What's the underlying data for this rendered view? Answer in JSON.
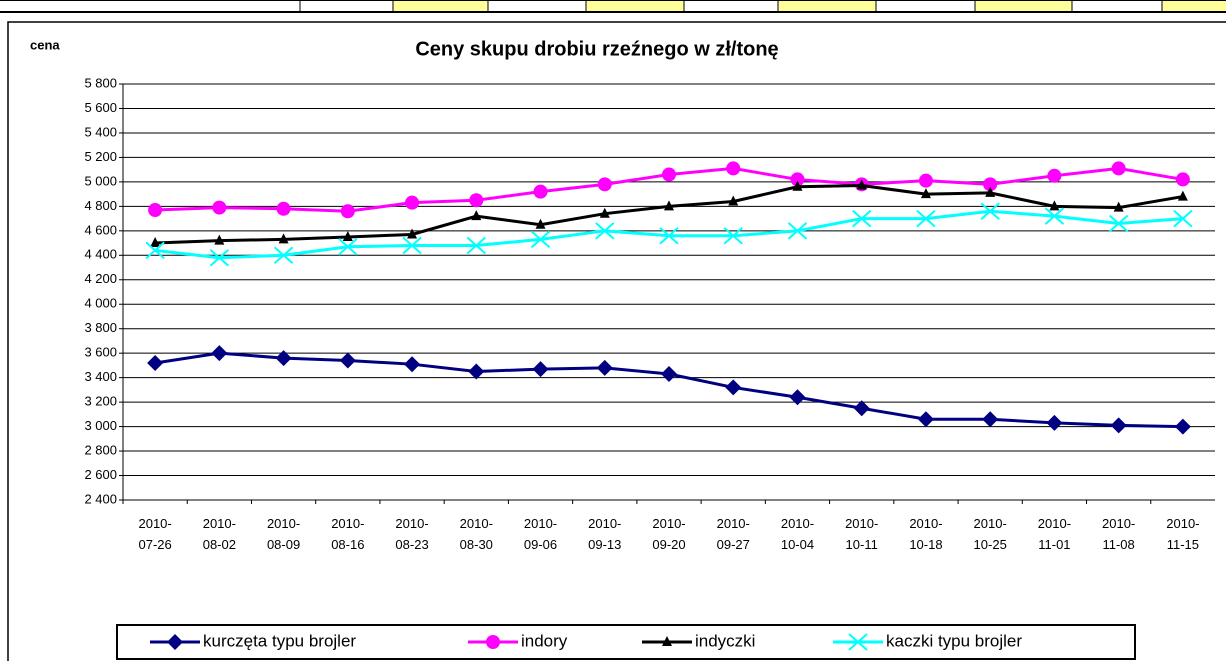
{
  "chart_data": {
    "type": "line",
    "title": "Ceny skupu drobiu rzeźnego w zł/tonę",
    "y_label": "cena",
    "categories": [
      "2010-07-26",
      "2010-08-02",
      "2010-08-09",
      "2010-08-16",
      "2010-08-23",
      "2010-08-30",
      "2010-09-06",
      "2010-09-13",
      "2010-09-20",
      "2010-09-27",
      "2010-10-04",
      "2010-10-11",
      "2010-10-18",
      "2010-10-25",
      "2010-11-01",
      "2010-11-08",
      "2010-11-15"
    ],
    "series": [
      {
        "name": "kurczęta typu brojler",
        "color": "#000080",
        "marker": "diamond",
        "values": [
          3520,
          3600,
          3560,
          3540,
          3510,
          3450,
          3470,
          3480,
          3430,
          3320,
          3240,
          3150,
          3060,
          3060,
          3030,
          3010,
          3000
        ]
      },
      {
        "name": "indory",
        "color": "#ff00ff",
        "marker": "circle",
        "values": [
          4770,
          4790,
          4780,
          4760,
          4830,
          4850,
          4920,
          4980,
          5060,
          5110,
          5020,
          4980,
          5010,
          4980,
          5050,
          5110,
          5020
        ]
      },
      {
        "name": "indyczki",
        "color": "#000000",
        "marker": "triangle",
        "values": [
          4500,
          4520,
          4530,
          4550,
          4570,
          4720,
          4650,
          4740,
          4800,
          4840,
          4960,
          4970,
          4900,
          4910,
          4800,
          4790,
          4880
        ]
      },
      {
        "name": "kaczki typu brojler",
        "color": "#00ffff",
        "marker": "x",
        "values": [
          4440,
          4380,
          4400,
          4470,
          4480,
          4480,
          4530,
          4600,
          4560,
          4560,
          4600,
          4700,
          4700,
          4760,
          4720,
          4660,
          4700
        ]
      }
    ],
    "ylim": [
      2400,
      5800
    ],
    "yticks": [
      {
        "value": 2400,
        "label": "2 400"
      },
      {
        "value": 2600,
        "label": "2 600"
      },
      {
        "value": 2800,
        "label": "2 800"
      },
      {
        "value": 3000,
        "label": "3 000"
      },
      {
        "value": 3200,
        "label": "3 200"
      },
      {
        "value": 3400,
        "label": "3 400"
      },
      {
        "value": 3600,
        "label": "3 600"
      },
      {
        "value": 3800,
        "label": "3 800"
      },
      {
        "value": 4000,
        "label": "4 000"
      },
      {
        "value": 4200,
        "label": "4 200"
      },
      {
        "value": 4400,
        "label": "4 400"
      },
      {
        "value": 4600,
        "label": "4 600"
      },
      {
        "value": 4800,
        "label": "4 800"
      },
      {
        "value": 5000,
        "label": "5 000"
      },
      {
        "value": 5200,
        "label": "5 200"
      },
      {
        "value": 5400,
        "label": "5 400"
      },
      {
        "value": 5600,
        "label": "5 600"
      },
      {
        "value": 5800,
        "label": "5 800"
      }
    ],
    "grid": true
  }
}
